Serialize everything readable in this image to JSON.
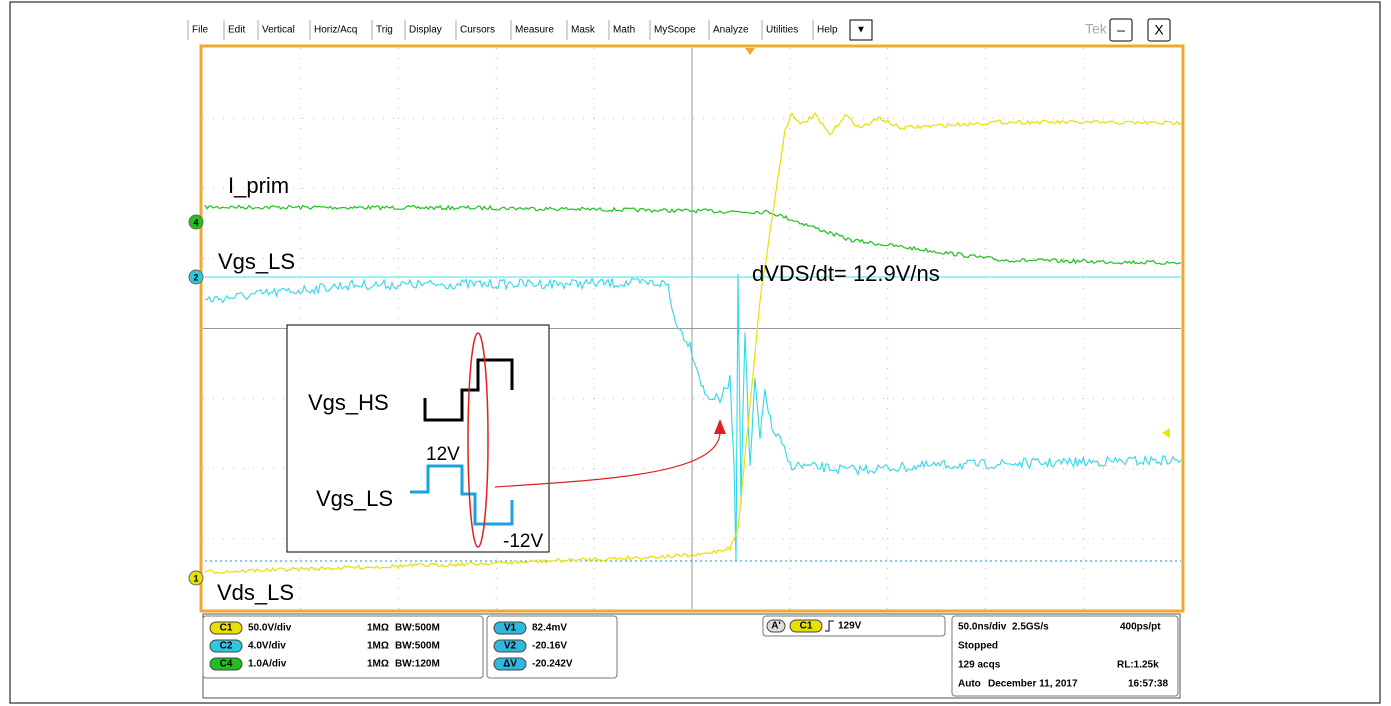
{
  "menu": [
    "File",
    "Edit",
    "Vertical",
    "Horiz/Acq",
    "Trig",
    "Display",
    "Cursors",
    "Measure",
    "Mask",
    "Math",
    "MyScope",
    "Analyze",
    "Utilities",
    "Help",
    "▼"
  ],
  "brand": "Tek",
  "window_buttons": [
    "–",
    "X"
  ],
  "channel_markers": [
    "4",
    "2",
    "1"
  ],
  "annotations": {
    "i_prim": "I_prim",
    "vgs_ls": "Vgs_LS",
    "vds_ls": "Vds_LS",
    "slew": "dVDS/dt= 12.9V/ns"
  },
  "inset": {
    "vgs_hs": "Vgs_HS",
    "high": "12V",
    "vgs_ls": "Vgs_LS",
    "low": "-12V"
  },
  "status": {
    "channels": [
      {
        "badge": "C1",
        "scale": "50.0V/div",
        "impedance": "1MΩ",
        "bandwidth": "BW:500M"
      },
      {
        "badge": "C2",
        "scale": "4.0V/div",
        "impedance": "1MΩ",
        "bandwidth": "BW:500M"
      },
      {
        "badge": "C4",
        "scale": "1.0A/div",
        "impedance": "1MΩ",
        "bandwidth": "BW:120M"
      }
    ],
    "cursors": [
      {
        "badge": "V1",
        "value": "82.4mV"
      },
      {
        "badge": "V2",
        "value": "-20.16V"
      },
      {
        "badge": "ΔV",
        "value": "-20.242V"
      }
    ],
    "trigger": {
      "mode": "A'",
      "source": "C1",
      "level": "129V"
    },
    "timebase": {
      "scale": "50.0ns/div",
      "rate": "2.5GS/s",
      "resolution": "400ps/pt",
      "state": "Stopped",
      "acqs": "129 acqs",
      "record": "RL:1.25k",
      "mode": "Auto",
      "date": "December 11, 2017",
      "time": "16:57:38"
    }
  }
}
